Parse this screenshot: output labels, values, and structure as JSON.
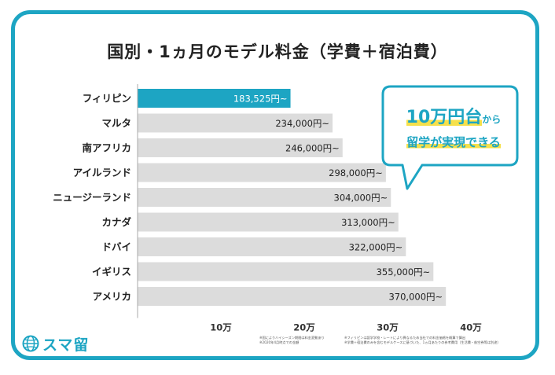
{
  "title": "国別・1ヵ月のモデル料金（学費＋宿泊費）",
  "callout": {
    "amount": "10万円台",
    "from": "から",
    "line2": "留学が実現できる"
  },
  "logo": {
    "text": "スマ留",
    "icon": "globe-icon"
  },
  "notes": {
    "left": [
      "※国によりハイシーズン期間は料金変動あり",
      "※2020年4月時点での金額"
    ],
    "right": [
      "※フィリピンは語学学校・レートにより異なるため当社での料金価格を概算で算出",
      "※学費＋宿泊費のみを含むモデルケースに基づいた、1ヵ月あたりの参考費用（生活費・航空券等は別途）"
    ]
  },
  "colors": {
    "highlight": "#1da5c3",
    "bar": "#dcdcdc",
    "accent_yellow": "#f6e04a"
  },
  "chart_data": {
    "type": "bar",
    "orientation": "horizontal",
    "title": "国別・1ヵ月のモデル料金（学費＋宿泊費）",
    "categories": [
      "フィリピン",
      "マルタ",
      "南アフリカ",
      "アイルランド",
      "ニュージーランド",
      "カナダ",
      "ドバイ",
      "イギリス",
      "アメリカ"
    ],
    "values": [
      183525,
      234000,
      246000,
      298000,
      304000,
      313000,
      322000,
      355000,
      370000
    ],
    "value_labels": [
      "183,525円~",
      "234,000円~",
      "246,000円~",
      "298,000円~",
      "304,000円~",
      "313,000円~",
      "322,000円~",
      "355,000円~",
      "370,000円~"
    ],
    "highlight_index": 0,
    "xticks": [
      100000,
      200000,
      300000,
      400000
    ],
    "xtick_labels": [
      "10万",
      "20万",
      "30万",
      "40万"
    ],
    "xlim": [
      0,
      400000
    ],
    "grid": false,
    "legend": "none"
  }
}
